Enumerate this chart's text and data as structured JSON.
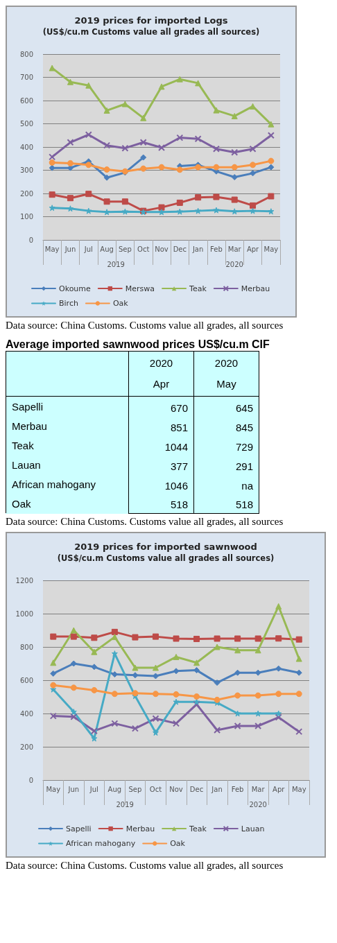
{
  "chart_data": [
    {
      "type": "line",
      "title": "2019 prices for imported Logs",
      "subtitle": "(US$/cu.m Customs value all grades all sources)",
      "categories": [
        "May",
        "Jun",
        "Jul",
        "Aug",
        "Sep",
        "Oct",
        "Nov",
        "Dec",
        "Jan",
        "Feb",
        "Mar",
        "Apr",
        "May"
      ],
      "ylim": [
        0,
        800
      ],
      "yticks": [
        0,
        100,
        200,
        300,
        400,
        500,
        600,
        700,
        800
      ],
      "grid": "y",
      "legend": "bottom",
      "annotations": [
        "2019",
        "2020",
        "Data source: China Customs. Customs value all grades, all sources"
      ],
      "series": [
        {
          "name": "Okoume",
          "color": "#4a7ebb",
          "marker": "diamond",
          "values": [
            310,
            310,
            338,
            268,
            290,
            355,
            null,
            318,
            323,
            295,
            270,
            287,
            313
          ]
        },
        {
          "name": "Merswa",
          "color": "#be4b48",
          "marker": "square",
          "values": [
            195,
            180,
            198,
            165,
            165,
            125,
            140,
            160,
            183,
            185,
            173,
            148,
            188
          ]
        },
        {
          "name": "Teak",
          "color": "#98b954",
          "marker": "triangle",
          "values": [
            740,
            680,
            665,
            557,
            585,
            525,
            660,
            692,
            675,
            558,
            533,
            575,
            498
          ]
        },
        {
          "name": "Merbau",
          "color": "#7d60a0",
          "marker": "cross",
          "values": [
            357,
            420,
            453,
            407,
            395,
            420,
            397,
            440,
            435,
            392,
            377,
            392,
            450
          ]
        },
        {
          "name": "Birch",
          "color": "#46aac5",
          "marker": "star",
          "values": [
            138,
            135,
            125,
            120,
            122,
            120,
            120,
            122,
            125,
            128,
            123,
            125,
            123
          ]
        },
        {
          "name": "Oak",
          "color": "#f79646",
          "marker": "circle",
          "values": [
            333,
            330,
            323,
            303,
            295,
            307,
            313,
            302,
            313,
            313,
            313,
            323,
            340
          ]
        }
      ]
    },
    {
      "type": "other",
      "data_labels": true,
      "title": "Average imported sawnwood prices US$/cu.m CIF",
      "categories": [
        "Sapelli",
        "Merbau",
        "Teak",
        "Lauan",
        "African mahogany",
        "Oak"
      ],
      "annotations": [
        "Data source: China Customs. Customs value all grades, all sources",
        "na"
      ],
      "series": [
        {
          "name": "2020\nApr",
          "values": [
            670,
            851,
            1044,
            377,
            1046,
            518
          ]
        },
        {
          "name": "2020\nMay",
          "values": [
            645,
            845,
            729,
            291,
            null,
            518
          ]
        }
      ]
    },
    {
      "type": "line",
      "title": "2019 prices for imported sawnwood",
      "subtitle": "(US$/cu.m Customs value all grades all sources)",
      "categories": [
        "May",
        "Jun",
        "Jul",
        "Aug",
        "Sep",
        "Oct",
        "Nov",
        "Dec",
        "Jan",
        "Feb",
        "Mar",
        "Apr",
        "May"
      ],
      "ylim": [
        0,
        1200
      ],
      "yticks": [
        0,
        200,
        400,
        600,
        800,
        1000,
        1200
      ],
      "grid": "y",
      "legend": "bottom",
      "annotations": [
        "2019",
        "2020",
        "Data source: China Customs. Customs value all grades, all sources"
      ],
      "series": [
        {
          "name": "Sapelli",
          "color": "#4a7ebb",
          "marker": "diamond",
          "values": [
            640,
            700,
            680,
            635,
            630,
            625,
            655,
            660,
            585,
            645,
            645,
            670,
            645
          ]
        },
        {
          "name": "Merbau",
          "color": "#be4b48",
          "marker": "square",
          "values": [
            862,
            862,
            855,
            890,
            858,
            862,
            850,
            848,
            850,
            850,
            850,
            851,
            845
          ]
        },
        {
          "name": "Teak",
          "color": "#98b954",
          "marker": "triangle",
          "values": [
            705,
            900,
            770,
            860,
            675,
            675,
            740,
            705,
            800,
            780,
            780,
            1044,
            729
          ]
        },
        {
          "name": "Lauan",
          "color": "#7d60a0",
          "marker": "cross",
          "values": [
            385,
            380,
            295,
            340,
            310,
            370,
            340,
            455,
            300,
            325,
            325,
            377,
            291
          ]
        },
        {
          "name": "African mahogany",
          "color": "#46aac5",
          "marker": "star",
          "values": [
            545,
            410,
            250,
            760,
            505,
            285,
            470,
            470,
            465,
            400,
            400,
            400,
            null
          ]
        },
        {
          "name": "Oak",
          "color": "#f79646",
          "marker": "circle",
          "values": [
            570,
            555,
            540,
            518,
            522,
            518,
            515,
            502,
            482,
            508,
            508,
            518,
            518
          ]
        }
      ]
    }
  ]
}
